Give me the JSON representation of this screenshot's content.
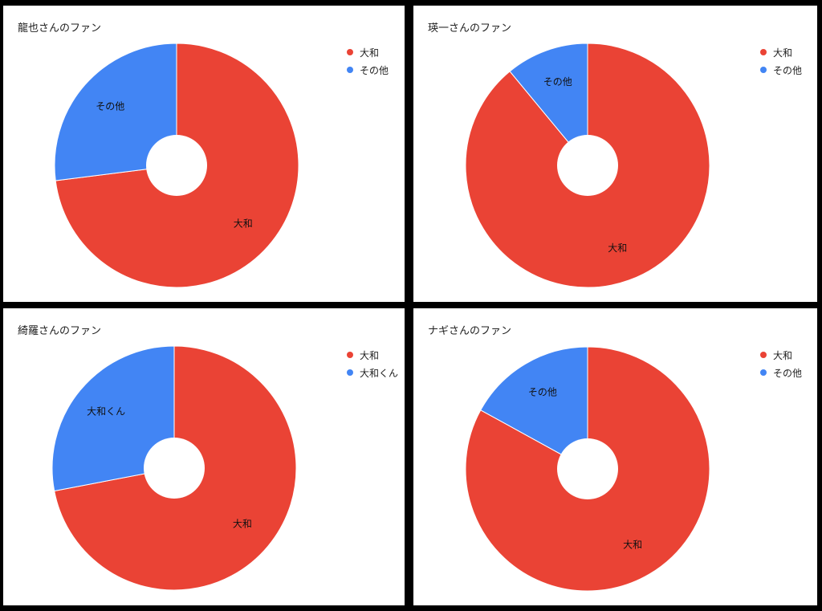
{
  "colors": {
    "red": "#ea4335",
    "blue": "#4285f4",
    "background": "#000000",
    "panel": "#ffffff"
  },
  "chart_data": [
    {
      "type": "pie",
      "donut": true,
      "title": "龍也さんのファン",
      "legend_position": "top-right",
      "slices": [
        {
          "label": "大和",
          "value": 73,
          "color": "#ea4335"
        },
        {
          "label": "その他",
          "value": 27,
          "color": "#4285f4"
        }
      ]
    },
    {
      "type": "pie",
      "donut": true,
      "title": "瑛一さんのファン",
      "legend_position": "top-right",
      "slices": [
        {
          "label": "大和",
          "value": 89,
          "color": "#ea4335"
        },
        {
          "label": "その他",
          "value": 11,
          "color": "#4285f4"
        }
      ]
    },
    {
      "type": "pie",
      "donut": true,
      "title": "綺羅さんのファン",
      "legend_position": "top-right",
      "slices": [
        {
          "label": "大和",
          "value": 72,
          "color": "#ea4335"
        },
        {
          "label": "大和くん",
          "value": 28,
          "color": "#4285f4"
        }
      ]
    },
    {
      "type": "pie",
      "donut": true,
      "title": "ナギさんのファン",
      "legend_position": "top-right",
      "slices": [
        {
          "label": "大和",
          "value": 83,
          "color": "#ea4335"
        },
        {
          "label": "その他",
          "value": 17,
          "color": "#4285f4"
        }
      ]
    }
  ]
}
